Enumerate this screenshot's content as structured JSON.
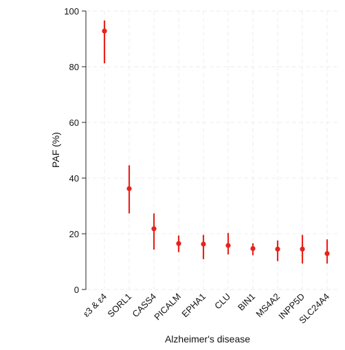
{
  "chart_data": {
    "type": "scatter",
    "title": "",
    "xlabel": "Alzheimer's disease",
    "ylabel": "PAF (%)",
    "ylim": [
      0,
      100
    ],
    "yticks": [
      0,
      20,
      40,
      60,
      80,
      100
    ],
    "grid": true,
    "categories": [
      "ε3 & ε4",
      "SORL1",
      "CASS4",
      "PICALM",
      "EPHA1",
      "CLU",
      "BIN1",
      "MS4A2",
      "INPP5D",
      "SLC24A4"
    ],
    "values": [
      92.8,
      36.2,
      21.8,
      16.5,
      16.3,
      15.8,
      14.7,
      14.5,
      14.5,
      12.9
    ],
    "ci_lower": [
      81.2,
      27.3,
      14.3,
      13.4,
      10.9,
      12.6,
      12.3,
      10.2,
      9.3,
      9.3
    ],
    "ci_upper": [
      96.6,
      44.6,
      27.3,
      19.4,
      19.6,
      20.3,
      16.6,
      17.6,
      19.6,
      18.0
    ],
    "colors": {
      "marker": "#e8231b",
      "axis": "#222222"
    }
  }
}
